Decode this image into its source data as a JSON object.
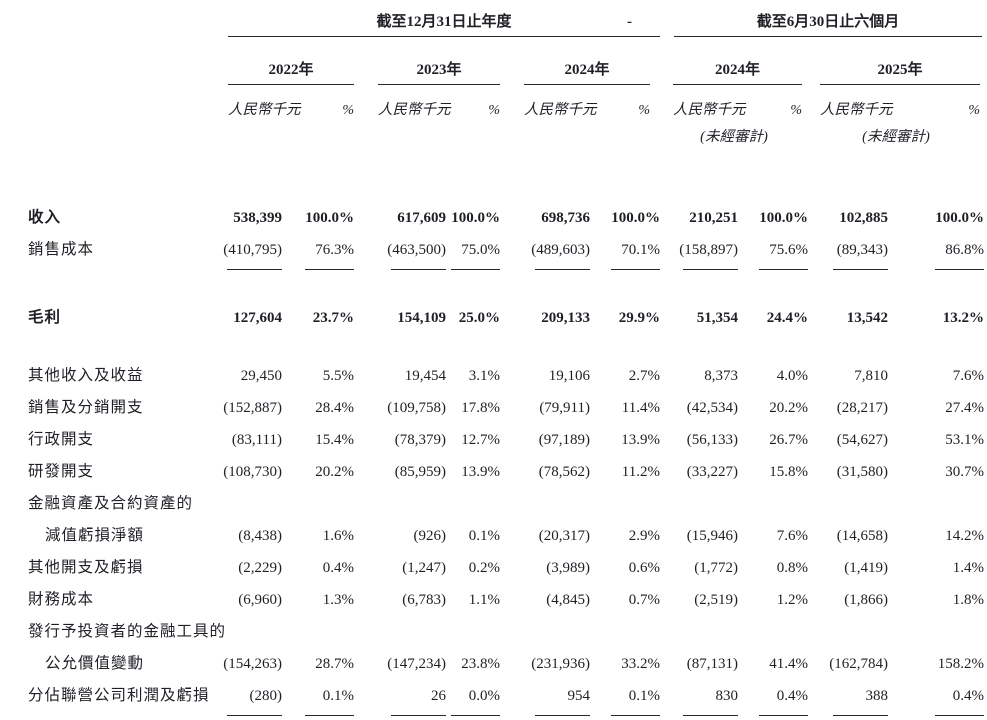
{
  "colors": {
    "text": "#1f1f26",
    "rule": "#26262e",
    "background": "#ffffff"
  },
  "table": {
    "group1": {
      "title": "截至12月31日止年度",
      "years": [
        "2022年",
        "2023年",
        "2024年"
      ]
    },
    "separator": "-",
    "group2": {
      "title": "截至6月30日止六個月",
      "years": [
        "2024年",
        "2025年"
      ],
      "unaudited": "(未經審計)"
    },
    "col_headers": {
      "amount": "人民幣千元",
      "percent": "%"
    },
    "rows": [
      {
        "label": "收入",
        "bold": true,
        "cells": [
          "538,399",
          "100.0%",
          "617,609",
          "100.0%",
          "698,736",
          "100.0%",
          "210,251",
          "100.0%",
          "102,885",
          "100.0%"
        ]
      },
      {
        "label": "銷售成本",
        "cells": [
          "(410,795)",
          "76.3%",
          "(463,500)",
          "75.0%",
          "(489,603)",
          "70.1%",
          "(158,897)",
          "75.6%",
          "(89,343)",
          "86.8%"
        ],
        "rule_below": true
      },
      {
        "blank": true
      },
      {
        "label": "毛利",
        "bold": true,
        "cells": [
          "127,604",
          "23.7%",
          "154,109",
          "25.0%",
          "209,133",
          "29.9%",
          "51,354",
          "24.4%",
          "13,542",
          "13.2%"
        ]
      },
      {
        "blank": true
      },
      {
        "label": "其他收入及收益",
        "cells": [
          "29,450",
          "5.5%",
          "19,454",
          "3.1%",
          "19,106",
          "2.7%",
          "8,373",
          "4.0%",
          "7,810",
          "7.6%"
        ]
      },
      {
        "label": "銷售及分銷開支",
        "cells": [
          "(152,887)",
          "28.4%",
          "(109,758)",
          "17.8%",
          "(79,911)",
          "11.4%",
          "(42,534)",
          "20.2%",
          "(28,217)",
          "27.4%"
        ]
      },
      {
        "label": "行政開支",
        "cells": [
          "(83,111)",
          "15.4%",
          "(78,379)",
          "12.7%",
          "(97,189)",
          "13.9%",
          "(56,133)",
          "26.7%",
          "(54,627)",
          "53.1%"
        ]
      },
      {
        "label": "研發開支",
        "cells": [
          "(108,730)",
          "20.2%",
          "(85,959)",
          "13.9%",
          "(78,562)",
          "11.2%",
          "(33,227)",
          "15.8%",
          "(31,580)",
          "30.7%"
        ]
      },
      {
        "label": "金融資產及合約資產的",
        "cells": []
      },
      {
        "label": "減值虧損淨額",
        "indent": true,
        "cells": [
          "(8,438)",
          "1.6%",
          "(926)",
          "0.1%",
          "(20,317)",
          "2.9%",
          "(15,946)",
          "7.6%",
          "(14,658)",
          "14.2%"
        ]
      },
      {
        "label": "其他開支及虧損",
        "cells": [
          "(2,229)",
          "0.4%",
          "(1,247)",
          "0.2%",
          "(3,989)",
          "0.6%",
          "(1,772)",
          "0.8%",
          "(1,419)",
          "1.4%"
        ]
      },
      {
        "label": "財務成本",
        "cells": [
          "(6,960)",
          "1.3%",
          "(6,783)",
          "1.1%",
          "(4,845)",
          "0.7%",
          "(2,519)",
          "1.2%",
          "(1,866)",
          "1.8%"
        ]
      },
      {
        "label": "發行予投資者的金融工具的",
        "cells": []
      },
      {
        "label": "公允價值變動",
        "indent": true,
        "cells": [
          "(154,263)",
          "28.7%",
          "(147,234)",
          "23.8%",
          "(231,936)",
          "33.2%",
          "(87,131)",
          "41.4%",
          "(162,784)",
          "158.2%"
        ]
      },
      {
        "label": "分佔聯營公司利潤及虧損",
        "cells": [
          "(280)",
          "0.1%",
          "26",
          "0.0%",
          "954",
          "0.1%",
          "830",
          "0.4%",
          "388",
          "0.4%"
        ],
        "rule_below": true
      }
    ]
  }
}
